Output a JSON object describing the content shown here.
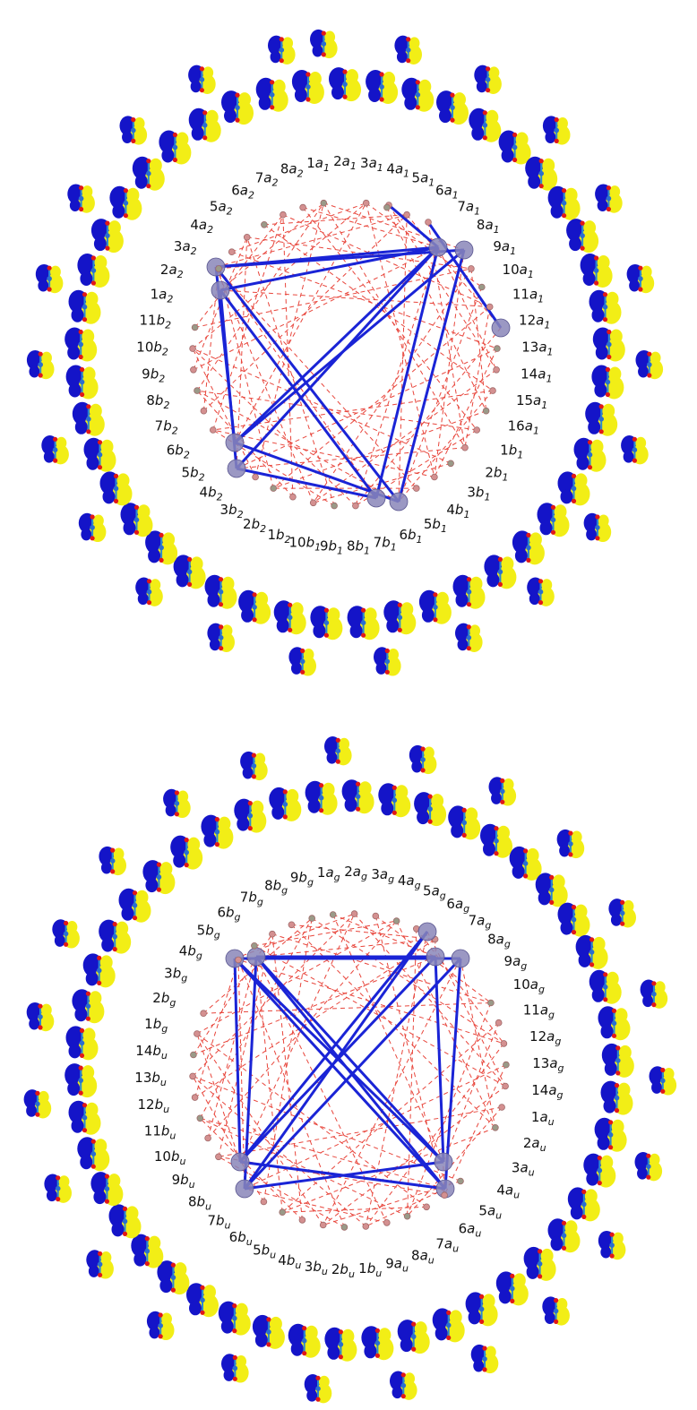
{
  "diagrams": [
    {
      "id": "top",
      "labels": [
        "1a1",
        "2a1",
        "3a1",
        "4a1",
        "5a1",
        "6a1",
        "7a1",
        "8a1",
        "9a1",
        "10a1",
        "11a1",
        "12a1",
        "13a1",
        "14a1",
        "15a1",
        "16a1",
        "1b1",
        "2b1",
        "3b1",
        "4b1",
        "5b1",
        "6b1",
        "7b1",
        "8b1",
        "9b1",
        "10b1",
        "1b2",
        "2b2",
        "3b2",
        "4b2",
        "5b2",
        "6b2",
        "7b2",
        "8b2",
        "9b2",
        "10b2",
        "11b2",
        "1a2",
        "2a2",
        "3a2",
        "4a2",
        "5a2",
        "6a2",
        "7a2",
        "8a2"
      ],
      "label_text": [
        {
          "main": "1a",
          "sub": "1"
        },
        {
          "main": "2a",
          "sub": "1"
        },
        {
          "main": "3a",
          "sub": "1"
        },
        {
          "main": "4a",
          "sub": "1"
        },
        {
          "main": "5a",
          "sub": "1"
        },
        {
          "main": "6a",
          "sub": "1"
        },
        {
          "main": "7a",
          "sub": "1"
        },
        {
          "main": "8a",
          "sub": "1"
        },
        {
          "main": "9a",
          "sub": "1"
        },
        {
          "main": "10a",
          "sub": "1"
        },
        {
          "main": "11a",
          "sub": "1"
        },
        {
          "main": "12a",
          "sub": "1"
        },
        {
          "main": "13a",
          "sub": "1"
        },
        {
          "main": "14a",
          "sub": "1"
        },
        {
          "main": "15a",
          "sub": "1"
        },
        {
          "main": "16a",
          "sub": "1"
        },
        {
          "main": "1b",
          "sub": "1"
        },
        {
          "main": "2b",
          "sub": "1"
        },
        {
          "main": "3b",
          "sub": "1"
        },
        {
          "main": "4b",
          "sub": "1"
        },
        {
          "main": "5b",
          "sub": "1"
        },
        {
          "main": "6b",
          "sub": "1"
        },
        {
          "main": "7b",
          "sub": "1"
        },
        {
          "main": "8b",
          "sub": "1"
        },
        {
          "main": "9b",
          "sub": "1"
        },
        {
          "main": "10b",
          "sub": "1"
        },
        {
          "main": "1b",
          "sub": "2"
        },
        {
          "main": "2b",
          "sub": "2"
        },
        {
          "main": "3b",
          "sub": "2"
        },
        {
          "main": "4b",
          "sub": "2"
        },
        {
          "main": "5b",
          "sub": "2"
        },
        {
          "main": "6b",
          "sub": "2"
        },
        {
          "main": "7b",
          "sub": "2"
        },
        {
          "main": "8b",
          "sub": "2"
        },
        {
          "main": "9b",
          "sub": "2"
        },
        {
          "main": "10b",
          "sub": "2"
        },
        {
          "main": "11b",
          "sub": "2"
        },
        {
          "main": "1a",
          "sub": "2"
        },
        {
          "main": "2a",
          "sub": "2"
        },
        {
          "main": "3a",
          "sub": "2"
        },
        {
          "main": "4a",
          "sub": "2"
        },
        {
          "main": "5a",
          "sub": "2"
        },
        {
          "main": "6a",
          "sub": "2"
        },
        {
          "main": "7a",
          "sub": "2"
        },
        {
          "main": "8a",
          "sub": "2"
        }
      ],
      "highlight_nodes": [
        "7a1",
        "8a1",
        "1a2",
        "2a2",
        "4b2",
        "5b2",
        "6b1",
        "7b1",
        "12a1"
      ],
      "strong_links": [
        [
          "7a1",
          "1a2"
        ],
        [
          "7a1",
          "2a2"
        ],
        [
          "7a1",
          "5b2"
        ],
        [
          "7a1",
          "4b2"
        ],
        [
          "7a1",
          "7b1"
        ],
        [
          "8a1",
          "1a2"
        ],
        [
          "8a1",
          "6b1"
        ],
        [
          "8a1",
          "5b2"
        ],
        [
          "1a2",
          "5b2"
        ],
        [
          "1a2",
          "6b1"
        ],
        [
          "2a2",
          "4b2"
        ],
        [
          "5b2",
          "6b1"
        ],
        [
          "4b2",
          "7b1"
        ],
        [
          "2a2",
          "7b1"
        ],
        [
          "12a1",
          "6a1"
        ],
        [
          "2a1",
          "7a1"
        ]
      ],
      "colors": {
        "strong": "#1a24d6",
        "weak": "#e8463c",
        "node_gray": "#9a9a88",
        "node_pink": "#d49090",
        "node_highlight": "#8a86b8"
      }
    },
    {
      "id": "bottom",
      "labels": [
        "1ag",
        "2ag",
        "3ag",
        "4ag",
        "5ag",
        "6ag",
        "7ag",
        "8ag",
        "9ag",
        "10ag",
        "11ag",
        "12ag",
        "13ag",
        "14ag",
        "1au",
        "2au",
        "3au",
        "4au",
        "5au",
        "6au",
        "7au",
        "8au",
        "9au",
        "1bu",
        "2bu",
        "3bu",
        "4bu",
        "5bu",
        "6bu",
        "7bu",
        "8bu",
        "9bu",
        "10bu",
        "11bu",
        "12bu",
        "13bu",
        "14bu",
        "1bg",
        "2bg",
        "3bg",
        "4bg",
        "5bg",
        "6bg",
        "7bg",
        "8bg",
        "9bg"
      ],
      "label_text": [
        {
          "main": "1a",
          "sub": "g"
        },
        {
          "main": "2a",
          "sub": "g"
        },
        {
          "main": "3a",
          "sub": "g"
        },
        {
          "main": "4a",
          "sub": "g"
        },
        {
          "main": "5a",
          "sub": "g"
        },
        {
          "main": "6a",
          "sub": "g"
        },
        {
          "main": "7a",
          "sub": "g"
        },
        {
          "main": "8a",
          "sub": "g"
        },
        {
          "main": "9a",
          "sub": "g"
        },
        {
          "main": "10a",
          "sub": "g"
        },
        {
          "main": "11a",
          "sub": "g"
        },
        {
          "main": "12a",
          "sub": "g"
        },
        {
          "main": "13a",
          "sub": "g"
        },
        {
          "main": "14a",
          "sub": "g"
        },
        {
          "main": "1a",
          "sub": "u"
        },
        {
          "main": "2a",
          "sub": "u"
        },
        {
          "main": "3a",
          "sub": "u"
        },
        {
          "main": "4a",
          "sub": "u"
        },
        {
          "main": "5a",
          "sub": "u"
        },
        {
          "main": "6a",
          "sub": "u"
        },
        {
          "main": "7a",
          "sub": "u"
        },
        {
          "main": "8a",
          "sub": "u"
        },
        {
          "main": "9a",
          "sub": "u"
        },
        {
          "main": "1b",
          "sub": "u"
        },
        {
          "main": "2b",
          "sub": "u"
        },
        {
          "main": "3b",
          "sub": "u"
        },
        {
          "main": "4b",
          "sub": "u"
        },
        {
          "main": "5b",
          "sub": "u"
        },
        {
          "main": "6b",
          "sub": "u"
        },
        {
          "main": "7b",
          "sub": "u"
        },
        {
          "main": "8b",
          "sub": "u"
        },
        {
          "main": "9b",
          "sub": "u"
        },
        {
          "main": "10b",
          "sub": "u"
        },
        {
          "main": "11b",
          "sub": "u"
        },
        {
          "main": "12b",
          "sub": "u"
        },
        {
          "main": "13b",
          "sub": "u"
        },
        {
          "main": "14b",
          "sub": "u"
        },
        {
          "main": "1b",
          "sub": "g"
        },
        {
          "main": "2b",
          "sub": "g"
        },
        {
          "main": "3b",
          "sub": "g"
        },
        {
          "main": "4b",
          "sub": "g"
        },
        {
          "main": "5b",
          "sub": "g"
        },
        {
          "main": "6b",
          "sub": "g"
        },
        {
          "main": "7b",
          "sub": "g"
        },
        {
          "main": "8b",
          "sub": "g"
        },
        {
          "main": "9b",
          "sub": "g"
        }
      ],
      "highlight_nodes": [
        "3bg",
        "4bg",
        "7ag",
        "8ag",
        "9ag",
        "3au",
        "4au",
        "7bu",
        "8bu"
      ],
      "strong_links": [
        [
          "3bg",
          "8ag"
        ],
        [
          "4bg",
          "9ag"
        ],
        [
          "3bg",
          "7bu"
        ],
        [
          "4bg",
          "8bu"
        ],
        [
          "8ag",
          "4au"
        ],
        [
          "9ag",
          "3au"
        ],
        [
          "7bu",
          "4au"
        ],
        [
          "8bu",
          "3au"
        ],
        [
          "3bg",
          "3au"
        ],
        [
          "4bg",
          "4au"
        ],
        [
          "8ag",
          "8bu"
        ],
        [
          "9ag",
          "7bu"
        ],
        [
          "7ag",
          "7bu"
        ],
        [
          "7ag",
          "8bu"
        ],
        [
          "3bg",
          "4au"
        ],
        [
          "4bg",
          "3au"
        ]
      ],
      "colors": {
        "strong": "#1a24d6",
        "weak": "#e8463c",
        "node_gray": "#9a9a88",
        "node_pink": "#d49090",
        "node_highlight": "#8a86b8"
      }
    }
  ],
  "orbital_colors": {
    "positive": "#f2ee16",
    "negative": "#1414c8",
    "atom_c": "#2a6ed0",
    "atom_o": "#e01818"
  }
}
